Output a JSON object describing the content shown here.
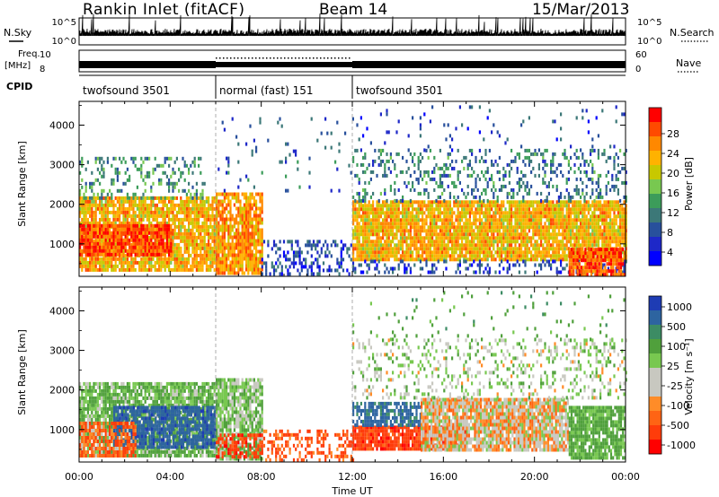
{
  "header": {
    "station": "Rankin Inlet (fitACF)",
    "beam": "Beam 14",
    "date": "15/Mar/2013"
  },
  "top_panels": {
    "nsky_label": "N.Sky",
    "nsearch_label": "N.Search",
    "noise_ticks": [
      "10^5",
      "10^0"
    ],
    "freq_label_line1": "Freq.",
    "freq_label_line2": "[MHz]",
    "freq_ticks": [
      "10",
      "8"
    ],
    "nave_label": "Nave",
    "nave_ticks": [
      "60",
      "0"
    ],
    "cpid_label": "CPID",
    "cpid_segments": [
      {
        "label": "twofsound 3501",
        "start_hour": 0,
        "end_hour": 6
      },
      {
        "label": "normal (fast) 151",
        "start_hour": 6,
        "end_hour": 12
      },
      {
        "label": "twofsound 3501",
        "start_hour": 12,
        "end_hour": 24
      }
    ]
  },
  "power_colorbar": {
    "label": "Power [dB]",
    "ticks": [
      "28",
      "24",
      "20",
      "16",
      "12",
      "8",
      "4"
    ],
    "colors": [
      "#ff0000",
      "#ff4a00",
      "#ff8800",
      "#ffb200",
      "#c8c800",
      "#78c850",
      "#3c9c5a",
      "#3c7878",
      "#28509c",
      "#1e28c8",
      "#0000ff"
    ]
  },
  "velocity_colorbar": {
    "label": "Velocity [m s⁻¹]",
    "ticks": [
      "1000",
      "500",
      "100",
      "25",
      "-25",
      "-100",
      "-500",
      "-1000"
    ],
    "colors": [
      "#1e3cb4",
      "#2d64a0",
      "#3c8c64",
      "#50a03c",
      "#78c850",
      "#c8c8c0",
      "#c8c8c0",
      "#ff8c28",
      "#ff6414",
      "#ff3c0a",
      "#ff0000"
    ]
  },
  "axes": {
    "ylabel": "Slant Range [km]",
    "yticks": [
      "4000",
      "3000",
      "2000",
      "1000"
    ],
    "xlabel": "Time UT",
    "xticks": [
      "00:00",
      "04:00",
      "08:00",
      "12:00",
      "16:00",
      "20:00",
      "00:00"
    ]
  },
  "chart_data": [
    {
      "type": "heatmap",
      "title": "",
      "xlabel": "",
      "ylabel": "Slant Range [km]",
      "x_unit": "hours UT",
      "xlim": [
        0,
        24
      ],
      "ylim": [
        180,
        4600
      ],
      "colorbar_label": "Power [dB]",
      "colorbar_range": [
        0,
        32
      ],
      "echo_regions": [
        {
          "t0": 0.0,
          "t1": 6.0,
          "r0": 300,
          "r1": 2200,
          "value": 22,
          "density": 0.85
        },
        {
          "t0": 0.0,
          "t1": 4.0,
          "r0": 700,
          "r1": 1500,
          "value": 28,
          "density": 0.9
        },
        {
          "t0": 0.0,
          "t1": 5.5,
          "r0": 2200,
          "r1": 3200,
          "value": 12,
          "density": 0.25
        },
        {
          "t0": 6.0,
          "t1": 8.0,
          "r0": 300,
          "r1": 2300,
          "value": 24,
          "density": 0.85
        },
        {
          "t0": 6.0,
          "t1": 12.0,
          "r0": 2300,
          "r1": 4200,
          "value": 8,
          "density": 0.05
        },
        {
          "t0": 8.0,
          "t1": 12.0,
          "r0": 200,
          "r1": 1100,
          "value": 6,
          "density": 0.35
        },
        {
          "t0": 12.0,
          "t1": 24.0,
          "r0": 600,
          "r1": 2100,
          "value": 22,
          "density": 0.9
        },
        {
          "t0": 12.0,
          "t1": 24.0,
          "r0": 2100,
          "r1": 3400,
          "value": 10,
          "density": 0.25
        },
        {
          "t0": 12.0,
          "t1": 24.0,
          "r0": 250,
          "r1": 600,
          "value": 6,
          "density": 0.3
        },
        {
          "t0": 21.5,
          "t1": 24.0,
          "r0": 250,
          "r1": 900,
          "value": 28,
          "density": 0.85
        },
        {
          "t0": 12.0,
          "t1": 24.0,
          "r0": 3400,
          "r1": 4500,
          "value": 6,
          "density": 0.04
        }
      ]
    },
    {
      "type": "heatmap",
      "title": "",
      "xlabel": "Time UT",
      "ylabel": "Slant Range [km]",
      "x_unit": "hours UT",
      "xlim": [
        0,
        24
      ],
      "ylim": [
        180,
        4600
      ],
      "colorbar_label": "Velocity [m s⁻¹]",
      "colorbar_range": [
        -1000,
        1000
      ],
      "echo_regions": [
        {
          "t0": 0.0,
          "t1": 6.0,
          "r0": 300,
          "r1": 2200,
          "value": 200,
          "density": 0.85
        },
        {
          "t0": 1.5,
          "t1": 6.0,
          "r0": 600,
          "r1": 1600,
          "value": 900,
          "density": 0.85
        },
        {
          "t0": 0.0,
          "t1": 2.5,
          "r0": 300,
          "r1": 1200,
          "value": -150,
          "density": 0.8
        },
        {
          "t0": 6.0,
          "t1": 8.0,
          "r0": 300,
          "r1": 2300,
          "value": 150,
          "density": 0.8
        },
        {
          "t0": 6.0,
          "t1": 8.0,
          "r0": 300,
          "r1": 900,
          "value": -300,
          "density": 0.6
        },
        {
          "t0": 8.0,
          "t1": 12.0,
          "r0": 200,
          "r1": 1000,
          "value": -200,
          "density": 0.4
        },
        {
          "t0": 12.0,
          "t1": 17.0,
          "r0": 500,
          "r1": 1100,
          "value": -300,
          "density": 0.9
        },
        {
          "t0": 12.0,
          "t1": 15.0,
          "r0": 1100,
          "r1": 1700,
          "value": 800,
          "density": 0.7
        },
        {
          "t0": 15.0,
          "t1": 21.5,
          "r0": 500,
          "r1": 1800,
          "value": 0,
          "density": 0.9
        },
        {
          "t0": 21.5,
          "t1": 24.0,
          "r0": 300,
          "r1": 1600,
          "value": 250,
          "density": 0.85
        },
        {
          "t0": 12.0,
          "t1": 24.0,
          "r0": 1800,
          "r1": 3300,
          "value": 100,
          "density": 0.25
        },
        {
          "t0": 12.0,
          "t1": 24.0,
          "r0": 3300,
          "r1": 4500,
          "value": 300,
          "density": 0.04
        }
      ]
    }
  ]
}
